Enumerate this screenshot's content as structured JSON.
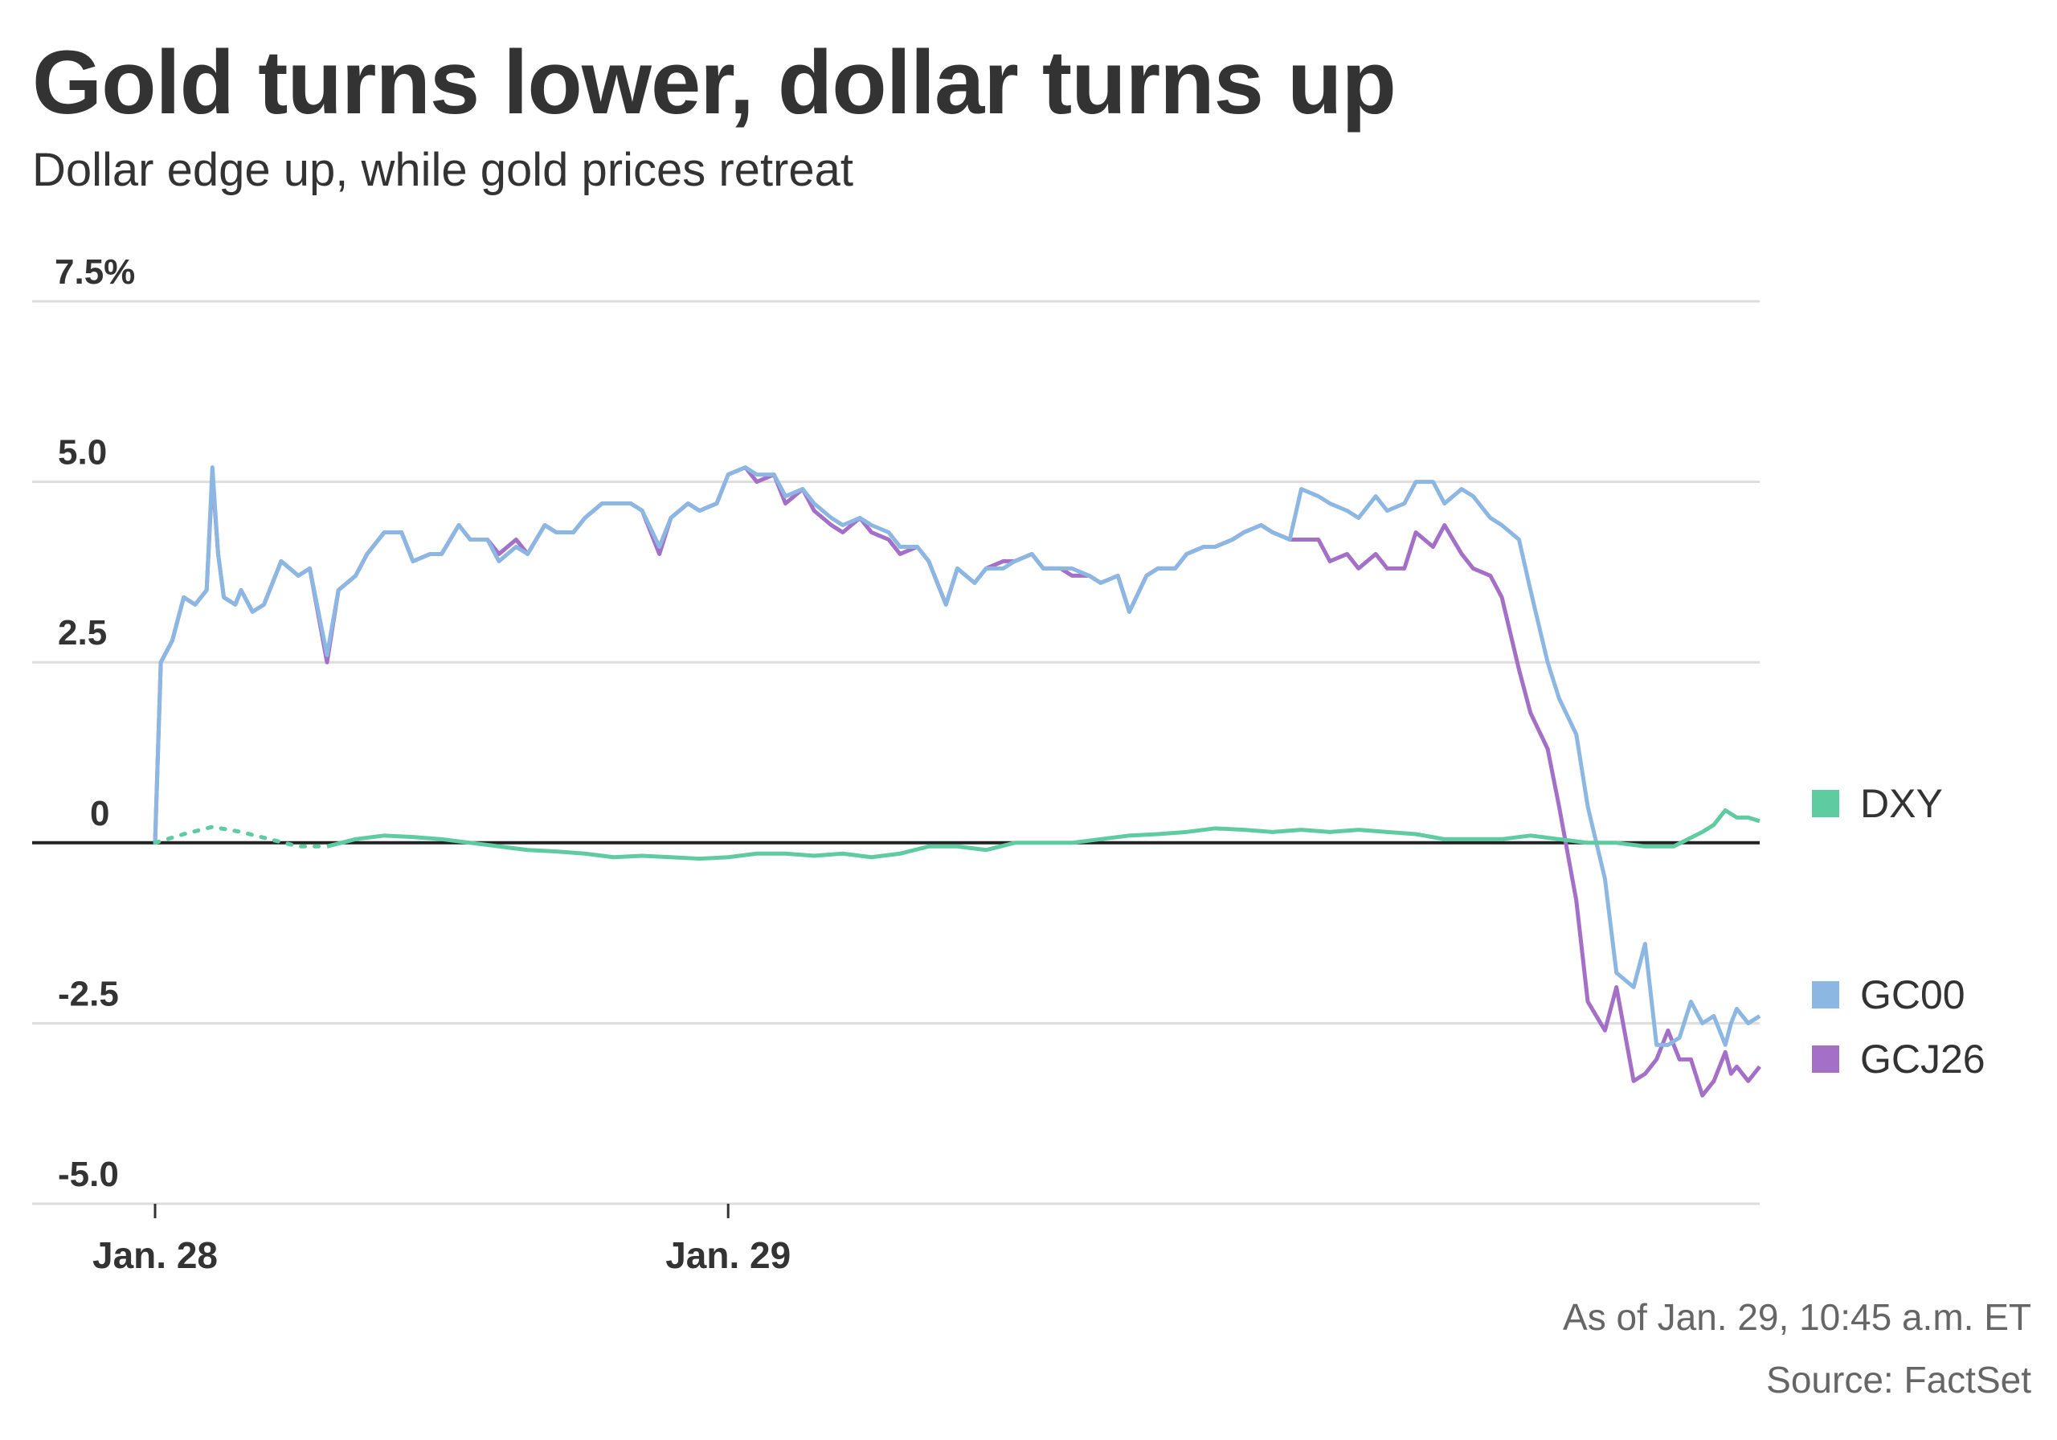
{
  "header": {
    "title": "Gold turns lower, dollar turns up",
    "subtitle": "Dollar edge up, while gold prices retreat"
  },
  "footer": {
    "as_of": "As of Jan. 29, 10:45 a.m. ET",
    "source": "Source: FactSet"
  },
  "chart_data": {
    "type": "line",
    "title": "Gold turns lower, dollar turns up",
    "subtitle": "Dollar edge up, while gold prices retreat",
    "xlabel": "",
    "ylabel": "",
    "ylim": [
      -5,
      7.5
    ],
    "yticks": [
      {
        "value": 7.5,
        "label": "7.5%"
      },
      {
        "value": 5,
        "label": "5.0"
      },
      {
        "value": 2.5,
        "label": "2.5"
      },
      {
        "value": 0,
        "label": "0"
      },
      {
        "value": -2.5,
        "label": "-2.5"
      },
      {
        "value": -5,
        "label": "-5.0"
      }
    ],
    "xlim": [
      0,
      2.8
    ],
    "xticks": [
      {
        "value": 0,
        "label": "Jan. 28"
      },
      {
        "value": 1,
        "label": "Jan. 29"
      }
    ],
    "grid": true,
    "legend_position": "right",
    "series": [
      {
        "name": "DXY",
        "color": "#5ecba1",
        "dotted_until": 0.3,
        "x": [
          0,
          0.05,
          0.1,
          0.15,
          0.2,
          0.25,
          0.3,
          0.35,
          0.4,
          0.45,
          0.5,
          0.55,
          0.6,
          0.65,
          0.7,
          0.75,
          0.8,
          0.85,
          0.9,
          0.95,
          1.0,
          1.05,
          1.1,
          1.15,
          1.2,
          1.25,
          1.3,
          1.35,
          1.4,
          1.45,
          1.5,
          1.55,
          1.6,
          1.65,
          1.7,
          1.75,
          1.8,
          1.85,
          1.9,
          1.95,
          2.0,
          2.05,
          2.1,
          2.15,
          2.2,
          2.25,
          2.3,
          2.35,
          2.4,
          2.45,
          2.5,
          2.55,
          2.6,
          2.65,
          2.7,
          2.72,
          2.74,
          2.76,
          2.78,
          2.8
        ],
        "values": [
          0.0,
          0.12,
          0.22,
          0.15,
          0.05,
          -0.05,
          -0.05,
          0.05,
          0.1,
          0.08,
          0.05,
          0.0,
          -0.05,
          -0.1,
          -0.12,
          -0.15,
          -0.2,
          -0.18,
          -0.2,
          -0.22,
          -0.2,
          -0.15,
          -0.15,
          -0.18,
          -0.15,
          -0.2,
          -0.15,
          -0.05,
          -0.05,
          -0.1,
          0.0,
          0.0,
          0.0,
          0.05,
          0.1,
          0.12,
          0.15,
          0.2,
          0.18,
          0.15,
          0.18,
          0.15,
          0.18,
          0.15,
          0.12,
          0.05,
          0.05,
          0.05,
          0.1,
          0.05,
          0.0,
          0.0,
          -0.05,
          -0.05,
          0.15,
          0.25,
          0.45,
          0.35,
          0.35,
          0.3
        ]
      },
      {
        "name": "GC00",
        "color": "#8cb7e3",
        "x": [
          0,
          0.01,
          0.03,
          0.05,
          0.07,
          0.09,
          0.1,
          0.11,
          0.12,
          0.14,
          0.15,
          0.17,
          0.19,
          0.22,
          0.25,
          0.27,
          0.3,
          0.32,
          0.35,
          0.37,
          0.4,
          0.43,
          0.45,
          0.48,
          0.5,
          0.53,
          0.55,
          0.58,
          0.6,
          0.63,
          0.65,
          0.68,
          0.7,
          0.73,
          0.75,
          0.78,
          0.8,
          0.83,
          0.85,
          0.88,
          0.9,
          0.93,
          0.95,
          0.98,
          1.0,
          1.03,
          1.05,
          1.08,
          1.1,
          1.13,
          1.15,
          1.18,
          1.2,
          1.23,
          1.25,
          1.28,
          1.3,
          1.33,
          1.35,
          1.38,
          1.4,
          1.43,
          1.45,
          1.48,
          1.5,
          1.53,
          1.55,
          1.58,
          1.6,
          1.63,
          1.65,
          1.68,
          1.7,
          1.73,
          1.75,
          1.78,
          1.8,
          1.83,
          1.85,
          1.88,
          1.9,
          1.93,
          1.95,
          1.98,
          2.0,
          2.03,
          2.05,
          2.08,
          2.1,
          2.13,
          2.15,
          2.18,
          2.2,
          2.23,
          2.25,
          2.28,
          2.3,
          2.33,
          2.35,
          2.38,
          2.4,
          2.43,
          2.45,
          2.48,
          2.5,
          2.53,
          2.55,
          2.58,
          2.6,
          2.62,
          2.64,
          2.66,
          2.68,
          2.7,
          2.72,
          2.74,
          2.75,
          2.76,
          2.78,
          2.8
        ],
        "values": [
          0.0,
          2.5,
          2.8,
          3.4,
          3.3,
          3.5,
          5.2,
          4.0,
          3.4,
          3.3,
          3.5,
          3.2,
          3.3,
          3.9,
          3.7,
          3.8,
          2.6,
          3.5,
          3.7,
          4.0,
          4.3,
          4.3,
          3.9,
          4.0,
          4.0,
          4.4,
          4.2,
          4.2,
          3.9,
          4.1,
          4.0,
          4.4,
          4.3,
          4.3,
          4.5,
          4.7,
          4.7,
          4.7,
          4.6,
          4.1,
          4.5,
          4.7,
          4.6,
          4.7,
          5.1,
          5.2,
          5.1,
          5.1,
          4.8,
          4.9,
          4.7,
          4.5,
          4.4,
          4.5,
          4.4,
          4.3,
          4.1,
          4.1,
          3.9,
          3.3,
          3.8,
          3.6,
          3.8,
          3.8,
          3.9,
          4.0,
          3.8,
          3.8,
          3.8,
          3.7,
          3.6,
          3.7,
          3.2,
          3.7,
          3.8,
          3.8,
          4.0,
          4.1,
          4.1,
          4.2,
          4.3,
          4.4,
          4.3,
          4.2,
          4.9,
          4.8,
          4.7,
          4.6,
          4.5,
          4.8,
          4.6,
          4.7,
          5.0,
          5.0,
          4.7,
          4.9,
          4.8,
          4.5,
          4.4,
          4.2,
          3.5,
          2.5,
          2.0,
          1.5,
          0.5,
          -0.5,
          -1.8,
          -2.0,
          -1.4,
          -2.8,
          -2.8,
          -2.7,
          -2.2,
          -2.5,
          -2.4,
          -2.8,
          -2.5,
          -2.3,
          -2.5,
          -2.4
        ]
      },
      {
        "name": "GCJ26",
        "color": "#a46fc7",
        "x": [
          0,
          0.01,
          0.03,
          0.05,
          0.07,
          0.09,
          0.1,
          0.11,
          0.12,
          0.14,
          0.15,
          0.17,
          0.19,
          0.22,
          0.25,
          0.27,
          0.3,
          0.32,
          0.35,
          0.37,
          0.4,
          0.43,
          0.45,
          0.48,
          0.5,
          0.53,
          0.55,
          0.58,
          0.6,
          0.63,
          0.65,
          0.68,
          0.7,
          0.73,
          0.75,
          0.78,
          0.8,
          0.83,
          0.85,
          0.88,
          0.9,
          0.93,
          0.95,
          0.98,
          1.0,
          1.03,
          1.05,
          1.08,
          1.1,
          1.13,
          1.15,
          1.18,
          1.2,
          1.23,
          1.25,
          1.28,
          1.3,
          1.33,
          1.35,
          1.38,
          1.4,
          1.43,
          1.45,
          1.48,
          1.5,
          1.53,
          1.55,
          1.58,
          1.6,
          1.63,
          1.65,
          1.68,
          1.7,
          1.73,
          1.75,
          1.78,
          1.8,
          1.83,
          1.85,
          1.88,
          1.9,
          1.93,
          1.95,
          1.98,
          2.0,
          2.03,
          2.05,
          2.08,
          2.1,
          2.13,
          2.15,
          2.18,
          2.2,
          2.23,
          2.25,
          2.28,
          2.3,
          2.33,
          2.35,
          2.38,
          2.4,
          2.43,
          2.45,
          2.48,
          2.5,
          2.53,
          2.55,
          2.58,
          2.6,
          2.62,
          2.64,
          2.66,
          2.68,
          2.7,
          2.72,
          2.74,
          2.75,
          2.76,
          2.78,
          2.8
        ],
        "values": [
          0.0,
          2.5,
          2.8,
          3.4,
          3.3,
          3.5,
          5.1,
          4.0,
          3.4,
          3.3,
          3.5,
          3.2,
          3.3,
          3.9,
          3.7,
          3.8,
          2.5,
          3.5,
          3.7,
          4.0,
          4.3,
          4.3,
          3.9,
          4.0,
          4.0,
          4.4,
          4.2,
          4.2,
          4.0,
          4.2,
          4.0,
          4.4,
          4.3,
          4.3,
          4.5,
          4.7,
          4.7,
          4.7,
          4.6,
          4.0,
          4.5,
          4.7,
          4.6,
          4.7,
          5.1,
          5.2,
          5.0,
          5.1,
          4.7,
          4.9,
          4.6,
          4.4,
          4.3,
          4.5,
          4.3,
          4.2,
          4.0,
          4.1,
          3.9,
          3.3,
          3.8,
          3.6,
          3.8,
          3.9,
          3.9,
          4.0,
          3.8,
          3.8,
          3.7,
          3.7,
          3.6,
          3.7,
          3.2,
          3.7,
          3.8,
          3.8,
          4.0,
          4.1,
          4.1,
          4.2,
          4.3,
          4.4,
          4.3,
          4.2,
          4.2,
          4.2,
          3.9,
          4.0,
          3.8,
          4.0,
          3.8,
          3.8,
          4.3,
          4.1,
          4.4,
          4.0,
          3.8,
          3.7,
          3.4,
          2.4,
          1.8,
          1.3,
          0.5,
          -0.8,
          -2.2,
          -2.6,
          -2.0,
          -3.3,
          -3.2,
          -3.0,
          -2.6,
          -3.0,
          -3.0,
          -3.5,
          -3.3,
          -2.9,
          -3.2,
          -3.1,
          -3.3,
          -3.1
        ]
      }
    ]
  }
}
